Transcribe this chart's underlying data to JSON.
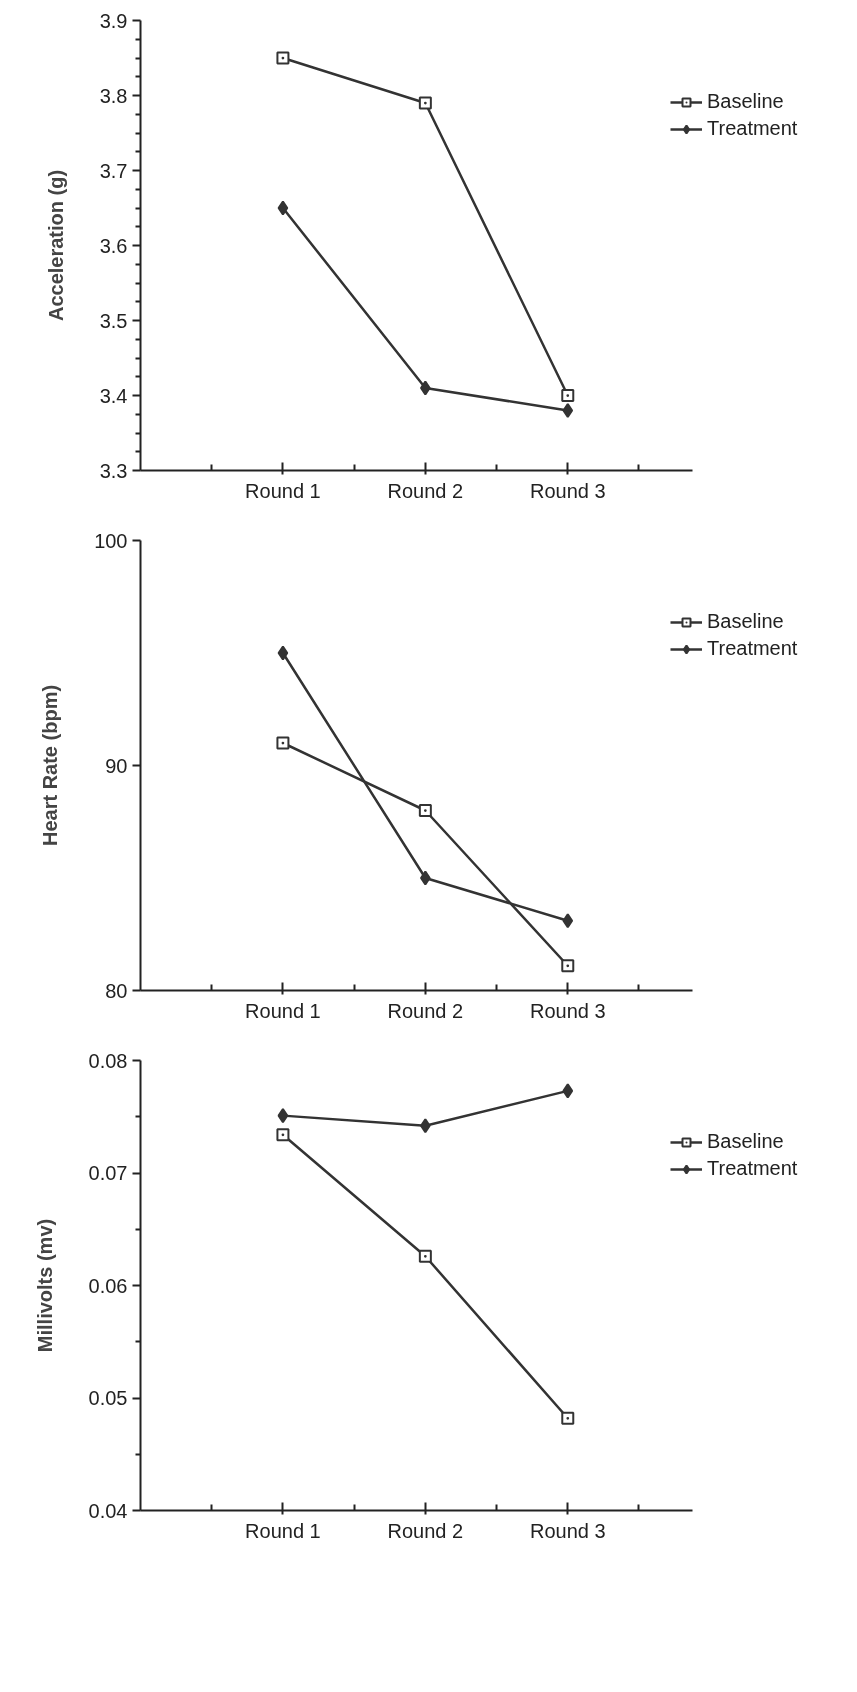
{
  "chart_data": [
    {
      "type": "line",
      "ylabel": "Acceleration (g)",
      "categories": [
        "Round 1",
        "Round 2",
        "Round 3"
      ],
      "legend": "top right",
      "line_style": "solid",
      "grid": false,
      "ylim": [
        3.3,
        3.9
      ],
      "yticks": [
        3.3,
        3.4,
        3.5,
        3.6,
        3.7,
        3.8,
        3.9,
        {
          "value": 3.325,
          "label": null
        },
        {
          "value": 3.35,
          "label": null
        },
        {
          "value": 3.375,
          "label": null
        },
        {
          "value": 3.425,
          "label": null
        },
        {
          "value": 3.45,
          "label": null
        },
        {
          "value": 3.475,
          "label": null
        },
        {
          "value": 3.525,
          "label": null
        },
        {
          "value": 3.55,
          "label": null
        },
        {
          "value": 3.575,
          "label": null
        },
        {
          "value": 3.625,
          "label": null
        },
        {
          "value": 3.65,
          "label": null
        },
        {
          "value": 3.675,
          "label": null
        },
        {
          "value": 3.725,
          "label": null
        },
        {
          "value": 3.75,
          "label": null
        },
        {
          "value": 3.775,
          "label": null
        },
        {
          "value": 3.825,
          "label": null
        },
        {
          "value": 3.85,
          "label": null
        },
        {
          "value": 3.875,
          "label": null
        }
      ],
      "series": [
        {
          "name": "Baseline",
          "color": "#333333",
          "marker": "square",
          "values": [
            3.85,
            3.79,
            3.4
          ]
        },
        {
          "name": "Treatment",
          "color": "#333333",
          "marker": "diamond",
          "values": [
            3.65,
            3.41,
            3.38
          ]
        }
      ]
    },
    {
      "type": "line",
      "ylabel": "Heart Rate (bpm)",
      "categories": [
        "Round 1",
        "Round 2",
        "Round 3"
      ],
      "legend": "top right",
      "line_style": "solid",
      "grid": false,
      "ylim": [
        80,
        100
      ],
      "yticks": [
        80,
        90,
        100
      ],
      "series": [
        {
          "name": "Baseline",
          "color": "#333333",
          "marker": "square",
          "values": [
            91.0,
            88.0,
            81.1
          ]
        },
        {
          "name": "Treatment",
          "color": "#333333",
          "marker": "diamond",
          "values": [
            95.0,
            85.0,
            83.1
          ]
        }
      ]
    },
    {
      "type": "line",
      "ylabel": "Millivolts (mv)",
      "categories": [
        "Round 1",
        "Round 2",
        "Round 3"
      ],
      "legend": "top right",
      "line_style": "solid",
      "grid": false,
      "ylim": [
        0.04,
        0.08
      ],
      "yticks": [
        0.04,
        0.05,
        0.06,
        0.07,
        0.08,
        {
          "value": 0.045,
          "label": null
        },
        {
          "value": 0.055,
          "label": null
        },
        {
          "value": 0.065,
          "label": null
        },
        {
          "value": 0.075,
          "label": null
        }
      ],
      "series": [
        {
          "name": "Baseline",
          "color": "#333333",
          "marker": "square",
          "values": [
            0.0734,
            0.0626,
            0.0482
          ]
        },
        {
          "name": "Treatment",
          "color": "#333333",
          "marker": "diamond",
          "values": [
            0.0751,
            0.0742,
            0.0773
          ]
        }
      ]
    }
  ]
}
